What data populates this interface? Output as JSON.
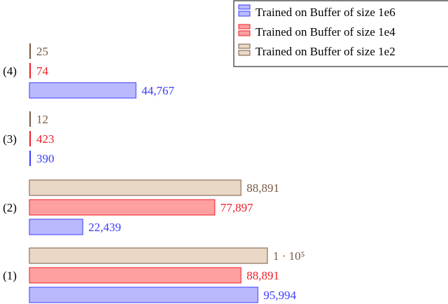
{
  "chart_data": {
    "type": "bar",
    "orientation": "horizontal",
    "title": "",
    "xlabel": "",
    "ylabel": "",
    "categories": [
      "(4)",
      "(3)",
      "(2)",
      "(1)"
    ],
    "series": [
      {
        "name": "Trained on Buffer of size 1e6",
        "values": [
          44767,
          390,
          22439,
          95994
        ],
        "labels": [
          "44,767",
          "390",
          "22,439",
          "95,994"
        ],
        "color": "#3b3bff",
        "fill": "#b9b9ff"
      },
      {
        "name": "Trained on Buffer of size 1e4",
        "values": [
          74,
          423,
          77897,
          88891
        ],
        "labels": [
          "74",
          "423",
          "77,897",
          "88,891"
        ],
        "color": "#ee1c25",
        "fill": "#ffa0a0"
      },
      {
        "name": "Trained on Buffer of size 1e2",
        "values": [
          25,
          12,
          88891,
          100000
        ],
        "labels": [
          "25",
          "12",
          "88,891",
          "1 · 10⁵"
        ],
        "color": "#7a5a44",
        "fill": "#ead8c6"
      }
    ],
    "grid": false,
    "axes_visible": false,
    "legend_position": "top-right"
  }
}
